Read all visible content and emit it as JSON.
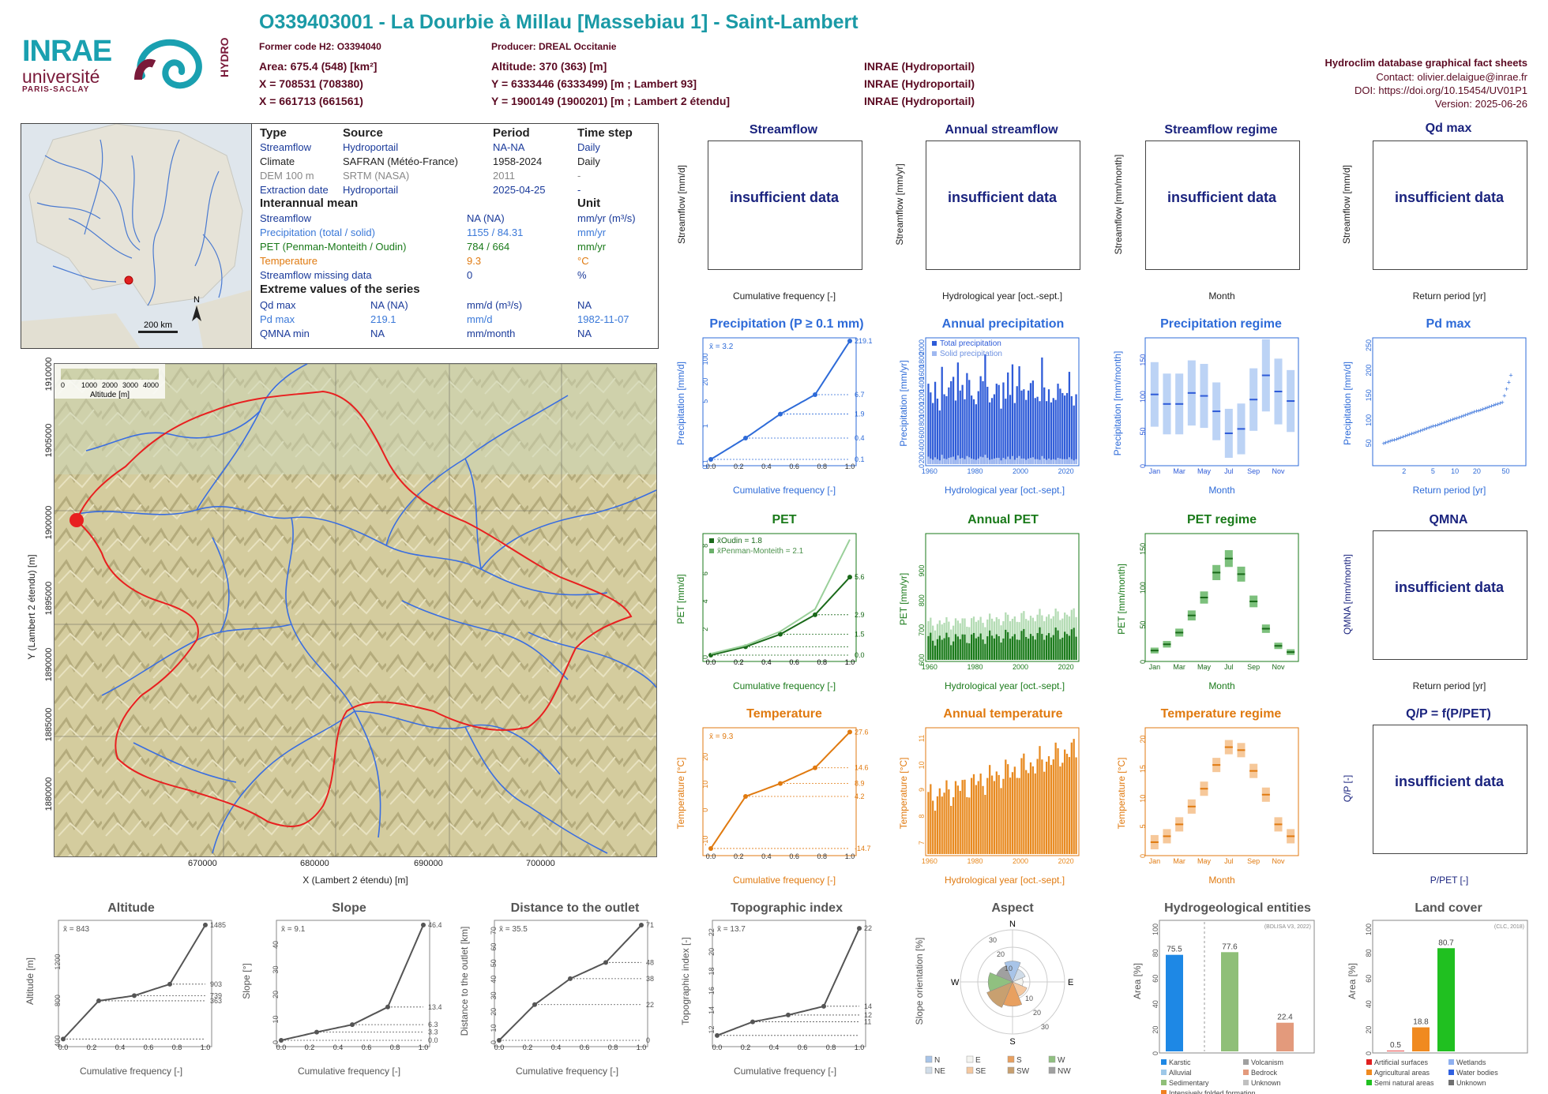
{
  "header": {
    "title": "O339403001 - La Dourbie à Millau [Massebiau 1] - Saint-Lambert",
    "former_code": "Former code H2: O3394040",
    "producer": "Producer: DREAL Occitanie",
    "area": "Area: 675.4 (548) [km²]",
    "altitude": "Altitude: 370 (363) [m]",
    "x93": "X = 708531 (708380)",
    "y93": "Y = 6333446 (6333499) [m ; Lambert 93]",
    "x2": "X = 661713 (661561)",
    "y2": "Y = 1900149 (1900201) [m ; Lambert 2 étendu]",
    "src1": "INRAE (Hydroportail)",
    "src2": "INRAE (Hydroportail)",
    "src3": "INRAE (Hydroportail)",
    "sheet": "Hydroclim database graphical fact sheets",
    "contact": "Contact: olivier.delaigue@inrae.fr",
    "doi": "DOI: https://doi.org/10.15454/UV01P1",
    "version": "Version: 2025-06-26"
  },
  "logos": {
    "inrae": "INRAE",
    "univ": "université",
    "ps": "PARIS-SACLAY",
    "hydro": "HYDRO"
  },
  "mini_map": {
    "scale": "200 km",
    "north": "N"
  },
  "table": {
    "h_type": "Type",
    "h_source": "Source",
    "h_period": "Period",
    "h_step": "Time step",
    "rows": [
      {
        "t": "Streamflow",
        "s": "Hydroportail",
        "p": "NA-NA",
        "d": "Daily"
      },
      {
        "t": "Climate",
        "s": "SAFRAN (Météo-France)",
        "p": "1958-2024",
        "d": "Daily"
      },
      {
        "t": "DEM 100 m",
        "s": "SRTM (NASA)",
        "p": "2011",
        "d": "-"
      },
      {
        "t": "Extraction date",
        "s": "Hydroportail",
        "p": "2025-04-25",
        "d": "-"
      }
    ],
    "h_mean": "Interannual mean",
    "h_unit": "Unit",
    "mean_rows": [
      {
        "n": "Streamflow",
        "v": "NA (NA)",
        "u": "mm/yr (m³/s)"
      },
      {
        "n": "Precipitation (total / solid)",
        "v": "1155 / 84.31",
        "u": "mm/yr"
      },
      {
        "n": "PET (Penman-Monteith / Oudin)",
        "v": "784 / 664",
        "u": "mm/yr"
      },
      {
        "n": "Temperature",
        "v": "9.3",
        "u": "°C"
      },
      {
        "n": "Streamflow missing data",
        "v": "0",
        "u": "%"
      }
    ],
    "h_extreme": "Extreme values of the series",
    "ext_rows": [
      {
        "n": "Qd max",
        "v": "NA (NA)",
        "u": "mm/d (m³/s)",
        "d": "NA"
      },
      {
        "n": "Pd max",
        "v": "219.1",
        "u": "mm/d",
        "d": "1982-11-07"
      },
      {
        "n": "QMNA min",
        "v": "NA",
        "u": "mm/month",
        "d": "NA"
      }
    ]
  },
  "map": {
    "xlabel": "X (Lambert 2 étendu) [m]",
    "ylabel": "Y (Lambert 2 étendu) [m]",
    "xticks": [
      "670000",
      "680000",
      "690000",
      "700000"
    ],
    "yticks": [
      "1910000",
      "1905000",
      "1900000",
      "1895000",
      "1890000",
      "1885000",
      "1880000"
    ],
    "legend_title": "Altitude [m]",
    "legend_ticks": [
      "0",
      "1000",
      "2000",
      "3000",
      "4000"
    ]
  },
  "insufficient": "insufficient data",
  "panels": {
    "streamflow": {
      "title": "Streamflow",
      "ylabel": "Streamflow [mm/d]",
      "xlabel": "Cumulative frequency [-]"
    },
    "annual_streamflow": {
      "title": "Annual streamflow",
      "ylabel": "Streamflow [mm/yr]",
      "xlabel": "Hydrological year [oct.-sept.]"
    },
    "streamflow_regime": {
      "title": "Streamflow regime",
      "ylabel": "Streamflow [mm/month]",
      "xlabel": "Month"
    },
    "qd_max": {
      "title": "Qd max",
      "ylabel": "Streamflow [mm/d]",
      "xlabel": "Return period [yr]"
    },
    "precip": {
      "title": "Precipitation (P ≥ 0.1 mm)",
      "ylabel": "Precipitation [mm/d]",
      "xlabel": "Cumulative frequency [-]",
      "mean": "x̄ = 3.2"
    },
    "annual_precip": {
      "title": "Annual precipitation",
      "ylabel": "Precipitation [mm/yr]",
      "xlabel": "Hydrological year [oct.-sept.]",
      "leg1": "Total precipitation",
      "leg2": "Solid precipitation"
    },
    "precip_regime": {
      "title": "Precipitation regime",
      "ylabel": "Precipitation [mm/month]",
      "xlabel": "Month"
    },
    "pd_max": {
      "title": "Pd max",
      "ylabel": "Precipitation [mm/d]",
      "xlabel": "Return period [yr]"
    },
    "pet": {
      "title": "PET",
      "ylabel": "PET [mm/d]",
      "xlabel": "Cumulative frequency [-]",
      "leg1": "x̄Oudin = 1.8",
      "leg2": "x̄Penman-Monteith = 2.1"
    },
    "annual_pet": {
      "title": "Annual PET",
      "ylabel": "PET [mm/yr]",
      "xlabel": "Hydrological year [oct.-sept.]"
    },
    "pet_regime": {
      "title": "PET regime",
      "ylabel": "PET [mm/month]",
      "xlabel": "Month"
    },
    "qmna": {
      "title": "QMNA",
      "ylabel": "QMNA [mm/month]",
      "xlabel": "Return period [yr]"
    },
    "temp": {
      "title": "Temperature",
      "ylabel": "Temperature [°C]",
      "xlabel": "Cumulative frequency [-]",
      "mean": "x̄ = 9.3"
    },
    "annual_temp": {
      "title": "Annual temperature",
      "ylabel": "Temperature [°C]",
      "xlabel": "Hydrological year [oct.-sept.]"
    },
    "temp_regime": {
      "title": "Temperature regime",
      "ylabel": "Temperature [°C]",
      "xlabel": "Month"
    },
    "qp": {
      "title": "Q/P = f(P/PET)",
      "ylabel": "Q/P [-]",
      "xlabel": "P/PET [-]"
    },
    "altitude": {
      "title": "Altitude",
      "ylabel": "Altitude [m]",
      "xlabel": "Cumulative frequency [-]",
      "mean": "x̄ = 843"
    },
    "slope": {
      "title": "Slope",
      "ylabel": "Slope [°]",
      "xlabel": "Cumulative frequency [-]",
      "mean": "x̄ = 9.1"
    },
    "distance": {
      "title": "Distance to the outlet",
      "ylabel": "Distance to the outlet [km]",
      "xlabel": "Cumulative frequency [-]",
      "mean": "x̄ = 35.5"
    },
    "topo": {
      "title": "Topographic index",
      "ylabel": "Topographic index [-]",
      "xlabel": "Cumulative frequency [-]",
      "mean": "x̄ = 13.7"
    },
    "aspect": {
      "title": "Aspect",
      "ylabel": "Slope orientation [%]"
    },
    "hydrogeo": {
      "title": "Hydrogeological entities",
      "ylabel": "Area [%]",
      "note": "(BDLISA V3, 2022)"
    },
    "landcover": {
      "title": "Land cover",
      "ylabel": "Area [%]",
      "note": "(CLC, 2018)"
    }
  },
  "chart_data": [
    {
      "type": "line",
      "title": "Precipitation (P ≥ 0.1 mm)",
      "xlabel": "Cumulative frequency [-]",
      "ylabel": "Precipitation [mm/d]",
      "ylog": true,
      "x": [
        0,
        0.25,
        0.5,
        0.75,
        1.0
      ],
      "y": [
        0.1,
        0.4,
        1.9,
        6.7,
        219.1
      ],
      "right_labels": [
        "219.1",
        "6.7",
        "1.9",
        "0.4",
        "0.1"
      ],
      "yticks": [
        "0.1",
        "1",
        "5",
        "20",
        "100"
      ],
      "xticks": [
        "0.0",
        "0.2",
        "0.4",
        "0.6",
        "0.8",
        "1.0"
      ],
      "color": "#2e6bd8"
    },
    {
      "type": "bar",
      "title": "Annual precipitation",
      "xlabel": "Hydrological year [oct.-sept.]",
      "ylabel": "Precipitation [mm/yr]",
      "color": "#2e5bd8",
      "x_start": 1959,
      "xticks": [
        "1960",
        "1980",
        "2000",
        "2020"
      ],
      "yticks": [
        "0",
        "200",
        "400",
        "600",
        "800",
        "1000",
        "1200",
        "1400",
        "1600",
        "1800",
        "2000"
      ],
      "ylim": [
        0,
        2000
      ],
      "series": [
        {
          "name": "Total precipitation",
          "values": [
            1290,
            1150,
            980,
            1320,
            1050,
            860,
            1560,
            1120,
            1090,
            1230,
            1330,
            1400,
            1020,
            1630,
            1180,
            1270,
            1040,
            1460,
            1350,
            1100,
            1040,
            960,
            1170,
            1410,
            1330,
            1760,
            1240,
            990,
            1060,
            1120,
            1290,
            1270,
            890,
            1310,
            1050,
            1470,
            1110,
            1600,
            980,
            1250,
            1570,
            1180,
            1200,
            1030,
            1180,
            1300,
            1340,
            1060,
            1080,
            1010,
            1710,
            1230,
            1010,
            1200,
            990,
            1060,
            1030,
            1290,
            1210,
            1140,
            1100,
            1140,
            1480,
            1090,
            940,
            1120
          ]
        },
        {
          "name": "Solid precipitation",
          "values": [
            120,
            90,
            70,
            110,
            80,
            60,
            150,
            90,
            80,
            100,
            110,
            120,
            70,
            140,
            90,
            100,
            80,
            130,
            110,
            90,
            80,
            70,
            90,
            120,
            110,
            150,
            100,
            70,
            80,
            90,
            100,
            100,
            60,
            100,
            80,
            120,
            80,
            130,
            70,
            100,
            130,
            90,
            90,
            70,
            90,
            100,
            110,
            80,
            80,
            70,
            130,
            90,
            70,
            90,
            70,
            80,
            70,
            100,
            90,
            80,
            80,
            80,
            110,
            80,
            60,
            80
          ]
        }
      ]
    },
    {
      "type": "box",
      "title": "Precipitation regime",
      "xlabel": "Month",
      "ylabel": "Precipitation [mm/month]",
      "categories": [
        "Jan",
        "Feb",
        "Mar",
        "Apr",
        "May",
        "Jun",
        "Jul",
        "Aug",
        "Sep",
        "Oct",
        "Nov",
        "Dec"
      ],
      "xticks": [
        "Jan",
        "Mar",
        "May",
        "Jul",
        "Sep",
        "Nov"
      ],
      "yticks": [
        "0",
        "50",
        "100",
        "150"
      ],
      "ylim": [
        0,
        170
      ],
      "median": [
        95,
        82,
        82,
        97,
        93,
        72,
        42,
        48,
        88,
        121,
        99,
        86
      ]
    },
    {
      "type": "scatter",
      "title": "Pd max",
      "xlabel": "Return period [yr]",
      "ylabel": "Precipitation [mm/d]",
      "xticks": [
        "2",
        "5",
        "10",
        "20",
        "50"
      ],
      "yticks": [
        "50",
        "100",
        "150",
        "200",
        "250"
      ],
      "ylim": [
        0,
        250
      ]
    },
    {
      "type": "line",
      "title": "PET",
      "xlabel": "Cumulative frequency [-]",
      "ylabel": "PET [mm/d]",
      "right_labels": [
        "5.6",
        "2.9",
        "1.5",
        "0.0"
      ],
      "yticks": [
        "0",
        "2",
        "4",
        "6",
        "8"
      ],
      "series": [
        {
          "name": "x̄Oudin = 1.8",
          "x": [
            0,
            0.25,
            0.5,
            0.75,
            1
          ],
          "y": [
            0,
            0.6,
            1.5,
            2.9,
            5.6
          ]
        },
        {
          "name": "x̄Penman-Monteith = 2.1",
          "x": [
            0,
            0.25,
            0.5,
            0.75,
            1
          ],
          "y": [
            0.1,
            0.7,
            1.7,
            3.3,
            8.3
          ]
        }
      ]
    },
    {
      "type": "bar",
      "title": "Annual PET",
      "xlabel": "Hydrological year [oct.-sept.]",
      "ylabel": "PET [mm/yr]",
      "xticks": [
        "1960",
        "1980",
        "2000",
        "2020"
      ],
      "yticks": [
        "600",
        "700",
        "800",
        "900"
      ],
      "ylim": [
        580,
        1000
      ]
    },
    {
      "type": "box",
      "title": "PET regime",
      "xlabel": "Month",
      "ylabel": "PET [mm/month]",
      "xticks": [
        "Jan",
        "Mar",
        "May",
        "Jul",
        "Sep",
        "Nov"
      ],
      "yticks": [
        "0",
        "50",
        "100",
        "150"
      ],
      "median": [
        12,
        20,
        35,
        57,
        80,
        112,
        130,
        110,
        75,
        40,
        18,
        10
      ]
    },
    {
      "type": "line",
      "title": "Temperature",
      "xlabel": "Cumulative frequency [-]",
      "ylabel": "Temperature [°C]",
      "right_labels": [
        "27.6",
        "14.6",
        "8.9",
        "4.2",
        "-14.7"
      ],
      "yticks": [
        "-10",
        "0",
        "10",
        "20"
      ],
      "x": [
        0,
        0.25,
        0.5,
        0.75,
        1
      ],
      "y": [
        -14.7,
        4.2,
        8.9,
        14.6,
        27.6
      ]
    },
    {
      "type": "bar",
      "title": "Annual temperature",
      "xlabel": "Hydrological year [oct.-sept.]",
      "ylabel": "Temperature [°C]",
      "xticks": [
        "1960",
        "1980",
        "2000",
        "2020"
      ],
      "yticks": [
        "7",
        "8",
        "9",
        "10",
        "11"
      ],
      "ylim": [
        6.5,
        11.2
      ]
    },
    {
      "type": "box",
      "title": "Temperature regime",
      "xlabel": "Month",
      "ylabel": "Temperature [°C]",
      "xticks": [
        "Jan",
        "Mar",
        "May",
        "Jul",
        "Sep",
        "Nov"
      ],
      "yticks": [
        "0",
        "5",
        "10",
        "15",
        "20"
      ],
      "median": [
        2,
        3,
        5,
        8,
        11,
        15,
        18,
        17.5,
        14,
        10,
        5,
        3
      ]
    },
    {
      "type": "line",
      "title": "Altitude",
      "xlabel": "Cumulative frequency [-]",
      "ylabel": "Altitude [m]",
      "right_labels": [
        "1485",
        "903",
        "739",
        "363"
      ],
      "yticks": [
        "400",
        "800",
        "1200"
      ],
      "x": [
        0,
        0.25,
        0.5,
        0.75,
        1
      ],
      "y": [
        363,
        739,
        790,
        903,
        1485
      ]
    },
    {
      "type": "line",
      "title": "Slope",
      "xlabel": "Cumulative frequency [-]",
      "ylabel": "Slope [°]",
      "right_labels": [
        "46.4",
        "13.4",
        "6.3",
        "3.3",
        "0.0"
      ],
      "yticks": [
        "0",
        "10",
        "20",
        "30",
        "40"
      ],
      "x": [
        0,
        0.25,
        0.5,
        0.75,
        1
      ],
      "y": [
        0,
        3.3,
        6.3,
        13.4,
        46.4
      ]
    },
    {
      "type": "line",
      "title": "Distance to the outlet",
      "xlabel": "Cumulative frequency [-]",
      "ylabel": "Distance to the outlet [km]",
      "right_labels": [
        "71",
        "48",
        "38",
        "22",
        "0"
      ],
      "yticks": [
        "0",
        "10",
        "20",
        "30",
        "40",
        "50",
        "60",
        "70"
      ],
      "x": [
        0,
        0.25,
        0.5,
        0.75,
        1
      ],
      "y": [
        0,
        22,
        38,
        48,
        71
      ]
    },
    {
      "type": "line",
      "title": "Topographic index",
      "xlabel": "Cumulative frequency [-]",
      "ylabel": "Topographic index [-]",
      "right_labels": [
        "22",
        "14",
        "12",
        "11"
      ],
      "yticks": [
        "12",
        "14",
        "16",
        "18",
        "20",
        "22"
      ],
      "x": [
        0,
        0.25,
        0.5,
        0.75,
        1
      ],
      "y": [
        11,
        12.4,
        13.1,
        14,
        22
      ]
    },
    {
      "type": "pie",
      "title": "Aspect",
      "categories": [
        "N",
        "NE",
        "E",
        "SE",
        "S",
        "SW",
        "W",
        "NW"
      ],
      "rings": [
        "10",
        "20",
        "30"
      ],
      "values": [
        12,
        8,
        6,
        9,
        14,
        16,
        14,
        10
      ],
      "colors": [
        "#a8c4e8",
        "#d0dce8",
        "#f4f4f0",
        "#f4c8a0",
        "#e8a060",
        "#c8a070",
        "#90c080",
        "#a0a0a0"
      ]
    },
    {
      "type": "bar",
      "title": "Hydrogeological entities",
      "ylabel": "Area [%]",
      "yticks": [
        "0",
        "20",
        "40",
        "60",
        "80",
        "100"
      ],
      "ylim": [
        0,
        100
      ],
      "values": [
        75.5,
        77.6,
        22.4
      ],
      "labels": [
        "75.5",
        "77.6",
        "22.4"
      ],
      "colors": [
        "#1e88e5",
        "#8fbf78",
        "#e39a7c"
      ],
      "legend": [
        "Karstic",
        "Alluvial",
        "Sedimentary",
        "Intensively folded formation",
        "Volcanism",
        "Bedrock",
        "Unknown"
      ],
      "legend_colors": [
        "#1e88e5",
        "#9ec8e8",
        "#8fbf78",
        "#f08020",
        "#a0a0a0",
        "#e39a7c",
        "#c0c0c0"
      ]
    },
    {
      "type": "bar",
      "title": "Land cover",
      "ylabel": "Area [%]",
      "yticks": [
        "0",
        "20",
        "40",
        "60",
        "80",
        "100"
      ],
      "ylim": [
        0,
        100
      ],
      "values": [
        0.5,
        18.8,
        80.7
      ],
      "labels": [
        "0.5",
        "18.8",
        "80.7"
      ],
      "colors": [
        "#e02020",
        "#f08a20",
        "#20c020"
      ],
      "legend": [
        "Artificial surfaces",
        "Agricultural areas",
        "Semi natural areas",
        "Wetlands",
        "Water bodies",
        "Unknown"
      ],
      "legend_colors": [
        "#e02020",
        "#f08a20",
        "#20c020",
        "#8fb0f0",
        "#3060e0",
        "#707070"
      ]
    }
  ]
}
